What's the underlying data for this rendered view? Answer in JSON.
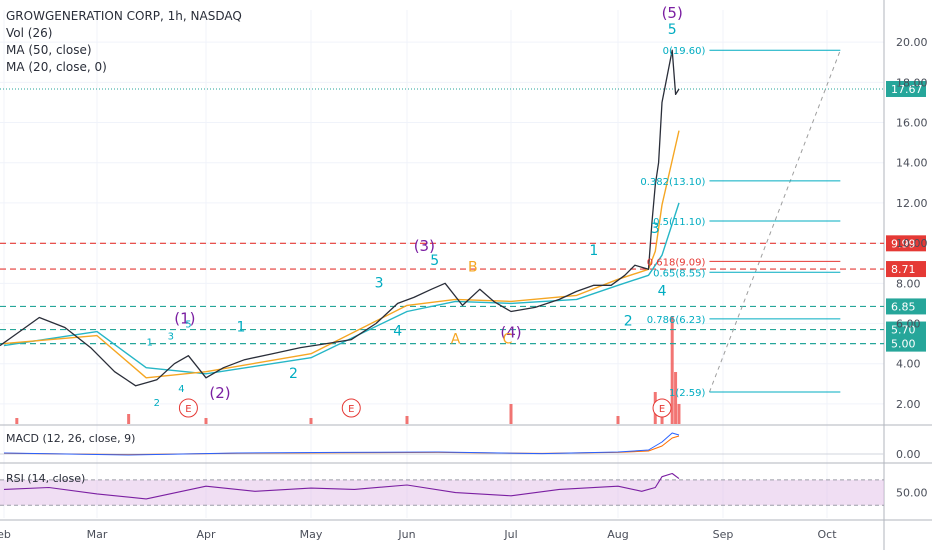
{
  "header": {
    "symbol_line": "GROWGENERATION CORP, 1h, NASDAQ",
    "indicators": [
      "Vol (26)",
      "MA (50, close)",
      "MA (20, close, 0)"
    ]
  },
  "colors": {
    "price": "#2a2e39",
    "ma_fast": "#f5a623",
    "ma_slow": "#26b6c6",
    "wave_primary": "#7b1fa2",
    "wave_minor": "#00acc1",
    "abc": "#f5a623",
    "resistance": "#e53935",
    "support": "#26a69a",
    "fib": "#00acc1",
    "volume": "#ef5350",
    "rsi_band": "#e1bee7",
    "rsi_line": "#7b1fa2",
    "macd_line": "#2962ff",
    "signal_line": "#ff6d00"
  },
  "chart_data": {
    "type": "line",
    "xaxis": {
      "labels": [
        "Feb",
        "Mar",
        "Apr",
        "May",
        "Jun",
        "Jul",
        "Aug",
        "Sep",
        "Oct"
      ],
      "first_label_visible": "eb"
    },
    "price_axis": {
      "ticks": [
        2.0,
        4.0,
        6.0,
        8.0,
        10.0,
        12.0,
        14.0,
        16.0,
        18.0,
        20.0
      ],
      "ylim": [
        1.0,
        21.6
      ],
      "last_price_label": "17.67"
    },
    "price_series": {
      "name": "Close",
      "x": [
        "Jan-27",
        "Feb-05",
        "Feb-12",
        "Feb-20",
        "Feb-28",
        "Mar-06",
        "Mar-12",
        "Mar-18",
        "Mar-23",
        "Mar-27",
        "Apr-01",
        "Apr-06",
        "Apr-12",
        "Apr-20",
        "Apr-28",
        "May-06",
        "May-14",
        "May-22",
        "May-29",
        "Jun-03",
        "Jun-08",
        "Jun-12",
        "Jun-17",
        "Jun-22",
        "Jun-26",
        "Jul-01",
        "Jul-08",
        "Jul-15",
        "Jul-20",
        "Jul-25",
        "Jul-30",
        "Aug-03",
        "Aug-06",
        "Aug-08",
        "Aug-10",
        "Aug-11",
        "Aug-12",
        "Aug-13",
        "Aug-14",
        "Aug-17",
        "Aug-18",
        "Aug-19"
      ],
      "y": [
        4.9,
        5.5,
        6.3,
        5.8,
        4.8,
        3.6,
        2.9,
        3.2,
        4.0,
        4.4,
        3.3,
        3.8,
        4.2,
        4.5,
        4.8,
        5.0,
        5.2,
        6.0,
        7.0,
        7.3,
        7.7,
        8.0,
        6.9,
        7.7,
        7.1,
        6.6,
        6.8,
        7.2,
        7.6,
        7.9,
        7.9,
        8.4,
        8.9,
        8.8,
        8.7,
        11.0,
        12.9,
        14.0,
        17.0,
        19.6,
        17.4,
        17.67
      ]
    },
    "ma_fast": {
      "name": "MA (20, close, 0)",
      "x": [
        "Feb-01",
        "Mar-01",
        "Mar-15",
        "Apr-01",
        "May-01",
        "Jun-01",
        "Jun-15",
        "Jul-01",
        "Jul-20",
        "Aug-01",
        "Aug-10",
        "Aug-12",
        "Aug-14",
        "Aug-19"
      ],
      "y": [
        5.0,
        5.4,
        3.3,
        3.6,
        4.5,
        6.9,
        7.2,
        7.1,
        7.4,
        8.2,
        8.7,
        9.6,
        11.9,
        15.6
      ]
    },
    "ma_slow": {
      "name": "MA (50, close)",
      "x": [
        "Feb-01",
        "Mar-01",
        "Mar-15",
        "Apr-01",
        "May-01",
        "Jun-01",
        "Jun-15",
        "Jul-01",
        "Jul-20",
        "Aug-01",
        "Aug-10",
        "Aug-14",
        "Aug-19"
      ],
      "y": [
        4.9,
        5.6,
        3.8,
        3.5,
        4.3,
        6.6,
        7.1,
        7.0,
        7.2,
        7.9,
        8.4,
        9.4,
        12.0
      ]
    },
    "horizontal_levels": [
      {
        "value": 9.99,
        "label": "9.99",
        "style": "resistance"
      },
      {
        "value": 8.71,
        "label": "8.71",
        "style": "resistance"
      },
      {
        "value": 6.85,
        "label": "6.85",
        "style": "support"
      },
      {
        "value": 5.7,
        "label": "5.70",
        "style": "support"
      },
      {
        "value": 5.0,
        "label": "5.00",
        "style": "support"
      }
    ],
    "fibonacci": {
      "x_start": "Aug-28",
      "x_end": "Oct-05",
      "levels": [
        {
          "ratio": "0",
          "value": 19.6,
          "label": "0(19.60)"
        },
        {
          "ratio": "0.382",
          "value": 13.1,
          "label": "0.382(13.10)"
        },
        {
          "ratio": "0.5",
          "value": 11.1,
          "label": "0.5(11.10)"
        },
        {
          "ratio": "0.618",
          "value": 9.09,
          "label": "0.618(9.09)"
        },
        {
          "ratio": "0.65",
          "value": 8.55,
          "label": "0.65(8.55)"
        },
        {
          "ratio": "0.786",
          "value": 6.23,
          "label": "0.786(6.23)"
        },
        {
          "ratio": "1",
          "value": 2.59,
          "label": "1(2.59)"
        }
      ]
    },
    "wave_labels": [
      {
        "text": "(1)",
        "x": "Mar-26",
        "y": 6.0,
        "kind": "primary"
      },
      {
        "text": "(2)",
        "x": "Apr-05",
        "y": 2.3,
        "kind": "primary"
      },
      {
        "text": "(3)",
        "x": "Jun-06",
        "y": 9.6,
        "kind": "primary"
      },
      {
        "text": "(4)",
        "x": "Jul-01",
        "y": 5.3,
        "kind": "primary"
      },
      {
        "text": "(5)",
        "x": "Aug-17",
        "y": 21.2,
        "kind": "primary"
      },
      {
        "text": "1",
        "x": "Mar-16",
        "y": 4.9,
        "kind": "minor_small"
      },
      {
        "text": "2",
        "x": "Mar-18",
        "y": 1.9,
        "kind": "minor_small"
      },
      {
        "text": "3",
        "x": "Mar-22",
        "y": 5.2,
        "kind": "minor_small"
      },
      {
        "text": "4",
        "x": "Mar-25",
        "y": 2.6,
        "kind": "minor_small"
      },
      {
        "text": "5",
        "x": "Mar-27",
        "y": 5.8,
        "kind": "minor_small"
      },
      {
        "text": "1",
        "x": "Apr-11",
        "y": 5.6,
        "kind": "minor"
      },
      {
        "text": "2",
        "x": "Apr-26",
        "y": 3.3,
        "kind": "minor"
      },
      {
        "text": "3",
        "x": "May-23",
        "y": 7.8,
        "kind": "minor"
      },
      {
        "text": "4",
        "x": "May-29",
        "y": 5.4,
        "kind": "minor"
      },
      {
        "text": "5",
        "x": "Jun-09",
        "y": 8.9,
        "kind": "minor"
      },
      {
        "text": "A",
        "x": "Jun-15",
        "y": 5.0,
        "kind": "abc"
      },
      {
        "text": "B",
        "x": "Jun-20",
        "y": 8.6,
        "kind": "abc"
      },
      {
        "text": "C",
        "x": "Jun-30",
        "y": 5.0,
        "kind": "abc"
      },
      {
        "text": "1",
        "x": "Jul-25",
        "y": 9.4,
        "kind": "minor"
      },
      {
        "text": "2",
        "x": "Aug-04",
        "y": 5.9,
        "kind": "minor"
      },
      {
        "text": "3",
        "x": "Aug-12",
        "y": 10.5,
        "kind": "minor"
      },
      {
        "text": "4",
        "x": "Aug-14",
        "y": 7.4,
        "kind": "minor"
      },
      {
        "text": "5",
        "x": "Aug-17",
        "y": 20.4,
        "kind": "minor"
      }
    ],
    "earnings_markers": [
      {
        "text": "E",
        "x": "Mar-27"
      },
      {
        "text": "E",
        "x": "May-14"
      },
      {
        "text": "E",
        "x": "Aug-14"
      }
    ],
    "volume": {
      "name": "Vol (26)",
      "x": [
        "Feb-05",
        "Mar-10",
        "Apr-01",
        "May-01",
        "Jun-01",
        "Jul-01",
        "Aug-01",
        "Aug-12",
        "Aug-14",
        "Aug-17",
        "Aug-18",
        "Aug-19"
      ],
      "values": [
        0.3,
        0.5,
        0.3,
        0.3,
        0.4,
        1.0,
        0.4,
        1.6,
        1.0,
        5.4,
        2.6,
        1.0
      ],
      "ylim": [
        0,
        6.0
      ]
    },
    "macd": {
      "title": "MACD (12, 26, close, 9)",
      "ticks": [
        0.0
      ],
      "ylim": [
        -0.4,
        1.4
      ],
      "macd_line": {
        "x": [
          "Feb-01",
          "Mar-10",
          "Apr-10",
          "May-10",
          "Jun-10",
          "Jul-10",
          "Aug-01",
          "Aug-10",
          "Aug-14",
          "Aug-17",
          "Aug-19"
        ],
        "y": [
          0.05,
          -0.05,
          0.05,
          0.08,
          0.1,
          0.02,
          0.1,
          0.2,
          0.6,
          1.05,
          0.95
        ]
      },
      "signal_line": {
        "x": [
          "Feb-01",
          "Mar-10",
          "Apr-10",
          "May-10",
          "Jun-10",
          "Jul-10",
          "Aug-01",
          "Aug-10",
          "Aug-14",
          "Aug-17",
          "Aug-19"
        ],
        "y": [
          0.04,
          -0.03,
          0.04,
          0.06,
          0.08,
          0.03,
          0.08,
          0.15,
          0.4,
          0.8,
          0.9
        ]
      }
    },
    "rsi": {
      "title": "RSI (14, close)",
      "ticks": [
        50.0
      ],
      "band": [
        30,
        70
      ],
      "ylim": [
        10,
        95
      ],
      "x": [
        "Feb-01",
        "Feb-15",
        "Mar-01",
        "Mar-15",
        "Apr-01",
        "Apr-15",
        "May-01",
        "May-15",
        "Jun-01",
        "Jun-15",
        "Jul-01",
        "Jul-15",
        "Aug-01",
        "Aug-08",
        "Aug-12",
        "Aug-14",
        "Aug-17",
        "Aug-19"
      ],
      "y": [
        55,
        58,
        48,
        40,
        60,
        52,
        57,
        55,
        62,
        50,
        45,
        55,
        60,
        52,
        58,
        75,
        80,
        72
      ]
    }
  }
}
